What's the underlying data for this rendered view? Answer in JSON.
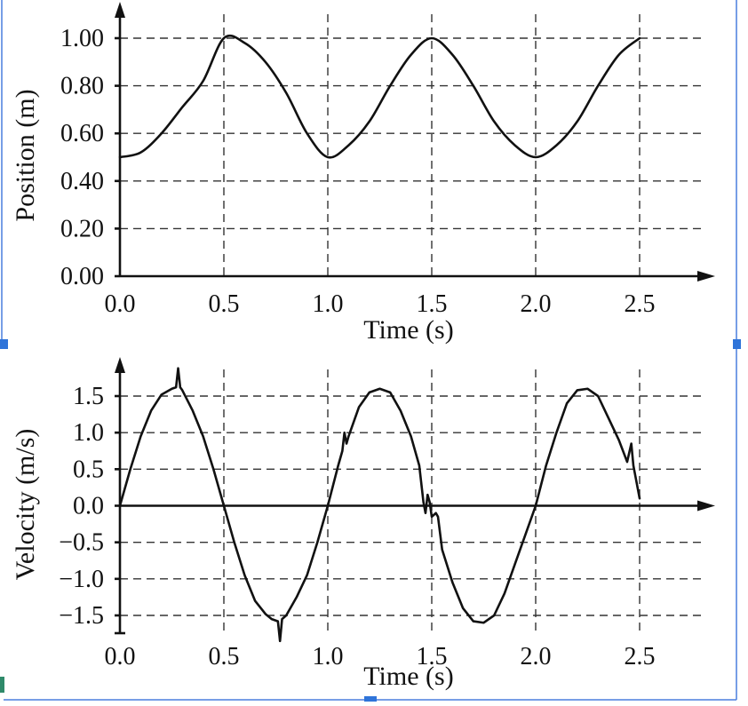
{
  "chart_data": [
    {
      "type": "line",
      "xlabel": "Time (s)",
      "ylabel": "Position (m)",
      "xlim": [
        0,
        2.75
      ],
      "ylim": [
        0,
        1.0
      ],
      "xticks": [
        "0.0",
        "0.5",
        "1.0",
        "1.5",
        "2.0",
        "2.5"
      ],
      "yticks": [
        "0.00",
        "0.20",
        "0.40",
        "0.60",
        "0.80",
        "1.00"
      ],
      "grid": true,
      "series": [
        {
          "x": [
            0,
            0.1,
            0.2,
            0.3,
            0.4,
            0.5,
            0.6,
            0.7,
            0.8,
            0.9,
            1.0,
            1.1,
            1.2,
            1.3,
            1.4,
            1.5,
            1.6,
            1.7,
            1.8,
            1.9,
            2.0,
            2.1,
            2.2,
            2.3,
            2.4,
            2.5
          ],
          "values": [
            0.5,
            0.52,
            0.6,
            0.71,
            0.82,
            1.0,
            0.98,
            0.9,
            0.77,
            0.6,
            0.5,
            0.55,
            0.65,
            0.8,
            0.93,
            1.0,
            0.93,
            0.8,
            0.65,
            0.55,
            0.5,
            0.55,
            0.65,
            0.8,
            0.93,
            1.0
          ]
        }
      ]
    },
    {
      "type": "line",
      "xlabel": "Time (s)",
      "ylabel": "Velocity (m/s)",
      "xlim": [
        0,
        2.75
      ],
      "ylim": [
        -1.6,
        1.6
      ],
      "xticks": [
        "0.0",
        "0.5",
        "1.0",
        "1.5",
        "2.0",
        "2.5"
      ],
      "yticks": [
        "1.5",
        "1.0",
        "0.5",
        "0.0",
        "−0.5",
        "−1.0",
        "−1.5"
      ],
      "grid": true,
      "series": [
        {
          "x": [
            0,
            0.05,
            0.1,
            0.15,
            0.2,
            0.25,
            0.27,
            0.28,
            0.29,
            0.3,
            0.35,
            0.4,
            0.45,
            0.5,
            0.55,
            0.6,
            0.65,
            0.7,
            0.73,
            0.76,
            0.77,
            0.78,
            0.8,
            0.85,
            0.9,
            0.95,
            1.0,
            1.05,
            1.07,
            1.08,
            1.09,
            1.1,
            1.15,
            1.2,
            1.25,
            1.3,
            1.35,
            1.4,
            1.44,
            1.46,
            1.47,
            1.48,
            1.49,
            1.5,
            1.52,
            1.53,
            1.55,
            1.6,
            1.65,
            1.7,
            1.75,
            1.8,
            1.85,
            1.9,
            1.95,
            2.0,
            2.05,
            2.1,
            2.15,
            2.2,
            2.25,
            2.3,
            2.35,
            2.4,
            2.44,
            2.46,
            2.47,
            2.48,
            2.5
          ],
          "values": [
            0,
            0.5,
            0.95,
            1.3,
            1.52,
            1.6,
            1.62,
            1.88,
            1.62,
            1.58,
            1.3,
            0.95,
            0.5,
            0,
            -0.5,
            -0.95,
            -1.3,
            -1.48,
            -1.55,
            -1.58,
            -1.85,
            -1.55,
            -1.5,
            -1.25,
            -0.95,
            -0.5,
            0,
            0.55,
            0.75,
            1.0,
            0.85,
            0.95,
            1.35,
            1.55,
            1.6,
            1.55,
            1.3,
            0.95,
            0.55,
            0.05,
            -0.1,
            0.15,
            0.05,
            -0.15,
            -0.1,
            -0.15,
            -0.6,
            -1.05,
            -1.4,
            -1.58,
            -1.6,
            -1.5,
            -1.2,
            -0.8,
            -0.4,
            0,
            0.55,
            1.0,
            1.4,
            1.58,
            1.6,
            1.5,
            1.2,
            0.9,
            0.6,
            0.85,
            0.55,
            0.4,
            0.1
          ]
        }
      ]
    }
  ]
}
